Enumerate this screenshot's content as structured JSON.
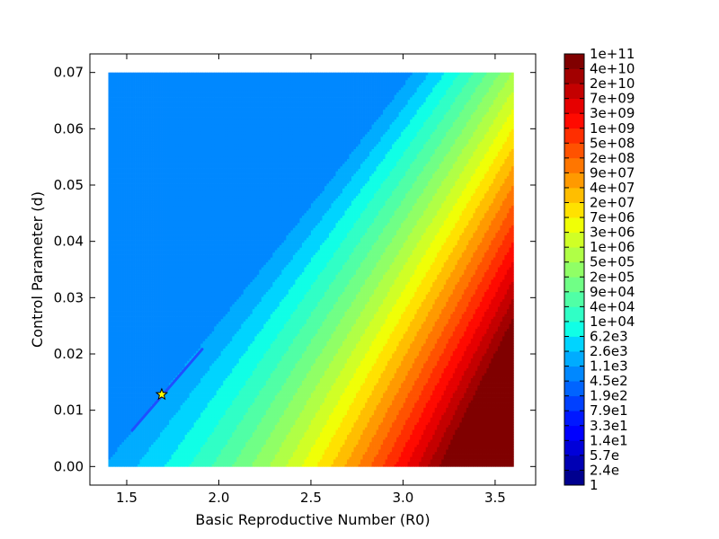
{
  "chart_data": {
    "type": "contourf",
    "xlabel": "Basic Reproductive Number (R0)",
    "ylabel": "Control Parameter (d)",
    "x_range": [
      1.3,
      3.72
    ],
    "y_range": [
      -0.0033,
      0.0733
    ],
    "data_extent": {
      "x": [
        1.4,
        3.6
      ],
      "y": [
        0.0,
        0.07
      ]
    },
    "x_ticks": [
      {
        "value": 1.5,
        "label": "1.5"
      },
      {
        "value": 2.0,
        "label": "2.0"
      },
      {
        "value": 2.5,
        "label": "2.5"
      },
      {
        "value": 3.0,
        "label": "3.0"
      },
      {
        "value": 3.5,
        "label": "3.5"
      }
    ],
    "y_ticks": [
      {
        "value": 0.0,
        "label": "0.00"
      },
      {
        "value": 0.01,
        "label": "0.01"
      },
      {
        "value": 0.02,
        "label": "0.02"
      },
      {
        "value": 0.03,
        "label": "0.03"
      },
      {
        "value": 0.04,
        "label": "0.04"
      },
      {
        "value": 0.05,
        "label": "0.05"
      },
      {
        "value": 0.06,
        "label": "0.06"
      },
      {
        "value": 0.07,
        "label": "0.07"
      }
    ],
    "colorbar_labels": [
      "1",
      "2.4e",
      "5.7e",
      "1.4e1",
      "3.3e1",
      "7.9e1",
      "1.9e2",
      "4.5e2",
      "1.1e3",
      "2.6e3",
      "6.2e3",
      "1e+04",
      "4e+04",
      "9e+04",
      "2e+05",
      "5e+05",
      "1e+06",
      "3e+06",
      "7e+06",
      "2e+07",
      "4e+07",
      "9e+07",
      "2e+08",
      "5e+08",
      "1e+09",
      "3e+09",
      "7e+09",
      "2e+10",
      "4e+10",
      "1e+11"
    ],
    "colorbar_colors": [
      "#00008f",
      "#0000b4",
      "#0000d9",
      "#0000ff",
      "#0018ff",
      "#0040ff",
      "#0064ff",
      "#0088ff",
      "#00acff",
      "#00d4ff",
      "#10ffe6",
      "#30ffc6",
      "#50ffa6",
      "#70ff86",
      "#90ff66",
      "#b0ff46",
      "#d0ff26",
      "#f0ff06",
      "#ffe200",
      "#ffbe00",
      "#ff9a00",
      "#ff7600",
      "#ff5200",
      "#ff2e00",
      "#ff0a00",
      "#e60000",
      "#c40000",
      "#a20000",
      "#800000"
    ],
    "marker": {
      "x": 1.69,
      "y": 0.0128,
      "symbol": "star",
      "color": "#ffff00"
    }
  }
}
